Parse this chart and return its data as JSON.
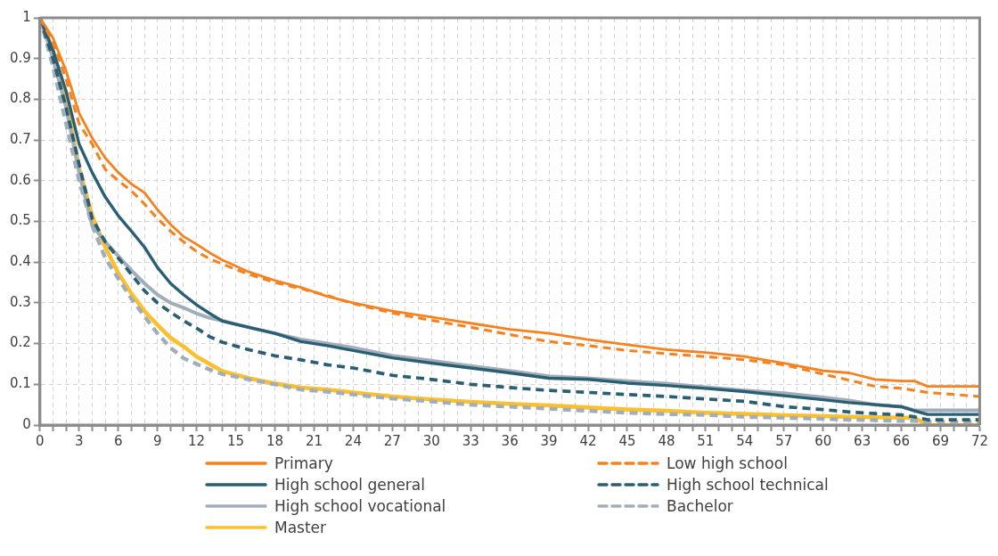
{
  "chart_data": {
    "type": "line",
    "x": [
      0,
      1,
      2,
      3,
      4,
      5,
      6,
      7,
      8,
      9,
      10,
      11,
      12,
      13,
      14,
      16,
      18,
      20,
      22,
      24,
      27,
      30,
      33,
      36,
      39,
      42,
      45,
      48,
      51,
      54,
      57,
      60,
      62,
      64,
      66,
      67,
      68,
      72
    ],
    "series": [
      {
        "name": "Primary",
        "color": "#f5821f",
        "line_style": "solid",
        "values": [
          1,
          0.95,
          0.87,
          0.766,
          0.705,
          0.656,
          0.62,
          0.592,
          0.571,
          0.529,
          0.493,
          0.463,
          0.444,
          0.423,
          0.405,
          0.376,
          0.355,
          0.338,
          0.316,
          0.3,
          0.28,
          0.265,
          0.25,
          0.235,
          0.225,
          0.21,
          0.197,
          0.185,
          0.178,
          0.168,
          0.152,
          0.133,
          0.128,
          0.112,
          0.108,
          0.108,
          0.095,
          0.095
        ]
      },
      {
        "name": "Low high school",
        "color": "#f5821f",
        "line_style": "dashed",
        "values": [
          1,
          0.94,
          0.85,
          0.74,
          0.69,
          0.628,
          0.6,
          0.575,
          0.543,
          0.507,
          0.476,
          0.45,
          0.426,
          0.408,
          0.395,
          0.37,
          0.35,
          0.335,
          0.318,
          0.298,
          0.275,
          0.257,
          0.24,
          0.222,
          0.205,
          0.195,
          0.183,
          0.175,
          0.168,
          0.16,
          0.148,
          0.125,
          0.11,
          0.095,
          0.09,
          0.085,
          0.08,
          0.07
        ]
      },
      {
        "name": "High school general",
        "color": "#2a5f73",
        "line_style": "solid",
        "values": [
          1,
          0.92,
          0.82,
          0.69,
          0.62,
          0.56,
          0.514,
          0.476,
          0.437,
          0.387,
          0.348,
          0.32,
          0.295,
          0.274,
          0.255,
          0.24,
          0.225,
          0.205,
          0.195,
          0.183,
          0.165,
          0.152,
          0.14,
          0.128,
          0.115,
          0.112,
          0.103,
          0.097,
          0.09,
          0.082,
          0.072,
          0.062,
          0.055,
          0.05,
          0.045,
          0.035,
          0.026,
          0.026
        ]
      },
      {
        "name": "High school technical",
        "color": "#2a5f73",
        "line_style": "dashed",
        "values": [
          1,
          0.9,
          0.78,
          0.64,
          0.507,
          0.45,
          0.41,
          0.37,
          0.33,
          0.3,
          0.277,
          0.256,
          0.238,
          0.217,
          0.203,
          0.185,
          0.17,
          0.16,
          0.148,
          0.14,
          0.122,
          0.112,
          0.1,
          0.092,
          0.085,
          0.08,
          0.075,
          0.07,
          0.064,
          0.058,
          0.045,
          0.038,
          0.032,
          0.028,
          0.025,
          0.02,
          0.013,
          0.013
        ]
      },
      {
        "name": "High school vocational",
        "color": "#a2adba",
        "line_style": "solid",
        "values": [
          1,
          0.9,
          0.78,
          0.62,
          0.49,
          0.45,
          0.415,
          0.38,
          0.348,
          0.32,
          0.3,
          0.288,
          0.274,
          0.263,
          0.256,
          0.24,
          0.225,
          0.21,
          0.2,
          0.19,
          0.17,
          0.158,
          0.145,
          0.133,
          0.12,
          0.115,
          0.108,
          0.102,
          0.093,
          0.085,
          0.078,
          0.068,
          0.06,
          0.05,
          0.045,
          0.036,
          0.036,
          0.036
        ]
      },
      {
        "name": "Bachelor",
        "color": "#a2adba",
        "line_style": "dashed",
        "values": [
          1,
          0.88,
          0.74,
          0.6,
          0.49,
          0.41,
          0.36,
          0.31,
          0.267,
          0.225,
          0.19,
          0.164,
          0.15,
          0.136,
          0.125,
          0.112,
          0.1,
          0.087,
          0.082,
          0.075,
          0.065,
          0.058,
          0.05,
          0.045,
          0.04,
          0.035,
          0.03,
          0.027,
          0.025,
          0.02,
          0.018,
          0.015,
          0.013,
          0.012,
          0.01,
          0.01,
          0.008,
          0.008
        ]
      },
      {
        "name": "Master",
        "color": "#fbc02d",
        "line_style": "solid",
        "values": [
          1,
          0.92,
          0.8,
          0.63,
          0.514,
          0.437,
          0.373,
          0.323,
          0.28,
          0.246,
          0.214,
          0.193,
          0.168,
          0.15,
          0.132,
          0.115,
          0.102,
          0.092,
          0.087,
          0.08,
          0.07,
          0.063,
          0.057,
          0.052,
          0.048,
          0.043,
          0.038,
          0.035,
          0.03,
          0.027,
          0.024,
          0.022,
          0.02,
          0.019,
          0.018,
          0.018,
          0,
          0
        ]
      }
    ],
    "xlim": [
      0,
      72
    ],
    "xticks": [
      0,
      {
        "value": 1,
        "label": null
      },
      {
        "value": 2,
        "label": null
      },
      3,
      {
        "value": 4,
        "label": null
      },
      {
        "value": 5,
        "label": null
      },
      6,
      {
        "value": 7,
        "label": null
      },
      {
        "value": 8,
        "label": null
      },
      9,
      {
        "value": 10,
        "label": null
      },
      {
        "value": 11,
        "label": null
      },
      12,
      {
        "value": 13,
        "label": null
      },
      {
        "value": 14,
        "label": null
      },
      15,
      {
        "value": 16,
        "label": null
      },
      {
        "value": 17,
        "label": null
      },
      18,
      {
        "value": 19,
        "label": null
      },
      {
        "value": 20,
        "label": null
      },
      21,
      {
        "value": 22,
        "label": null
      },
      {
        "value": 23,
        "label": null
      },
      24,
      {
        "value": 25,
        "label": null
      },
      {
        "value": 26,
        "label": null
      },
      27,
      {
        "value": 28,
        "label": null
      },
      {
        "value": 29,
        "label": null
      },
      30,
      {
        "value": 31,
        "label": null
      },
      {
        "value": 32,
        "label": null
      },
      33,
      {
        "value": 34,
        "label": null
      },
      {
        "value": 35,
        "label": null
      },
      36,
      {
        "value": 37,
        "label": null
      },
      {
        "value": 38,
        "label": null
      },
      39,
      {
        "value": 40,
        "label": null
      },
      {
        "value": 41,
        "label": null
      },
      42,
      {
        "value": 43,
        "label": null
      },
      {
        "value": 44,
        "label": null
      },
      45,
      {
        "value": 46,
        "label": null
      },
      {
        "value": 47,
        "label": null
      },
      48,
      {
        "value": 49,
        "label": null
      },
      {
        "value": 50,
        "label": null
      },
      51,
      {
        "value": 52,
        "label": null
      },
      {
        "value": 53,
        "label": null
      },
      54,
      {
        "value": 55,
        "label": null
      },
      {
        "value": 56,
        "label": null
      },
      57,
      {
        "value": 58,
        "label": null
      },
      {
        "value": 59,
        "label": null
      },
      60,
      {
        "value": 61,
        "label": null
      },
      {
        "value": 62,
        "label": null
      },
      63,
      {
        "value": 64,
        "label": null
      },
      {
        "value": 65,
        "label": null
      },
      66,
      {
        "value": 67,
        "label": null
      },
      {
        "value": 68,
        "label": null
      },
      69,
      {
        "value": 70,
        "label": null
      },
      {
        "value": 71,
        "label": null
      },
      72
    ],
    "ylim": [
      0,
      1
    ],
    "yticks": [
      0,
      0.1,
      0.2,
      0.3,
      0.4,
      0.5,
      0.6,
      0.7,
      0.8,
      0.9,
      1
    ],
    "grid": true,
    "legend": "bottom",
    "marker": "none"
  }
}
